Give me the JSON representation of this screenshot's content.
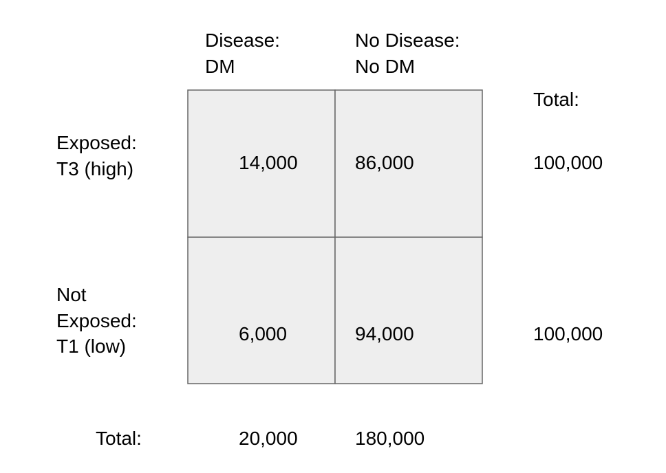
{
  "table": {
    "column_headers": [
      [
        "Disease:",
        "DM"
      ],
      [
        "No Disease:",
        "No DM"
      ]
    ],
    "total_header": "Total:",
    "rows": [
      {
        "label": [
          "Exposed:",
          "T3 (high)"
        ],
        "cells": [
          "14,000",
          "86,000"
        ],
        "total": "100,000"
      },
      {
        "label": [
          "Not",
          "Exposed:",
          "T1 (low)"
        ],
        "cells": [
          "6,000",
          "94,000"
        ],
        "total": "100,000"
      }
    ],
    "footer": {
      "label": "Total:",
      "cells": [
        "20,000",
        "180,000"
      ]
    }
  }
}
